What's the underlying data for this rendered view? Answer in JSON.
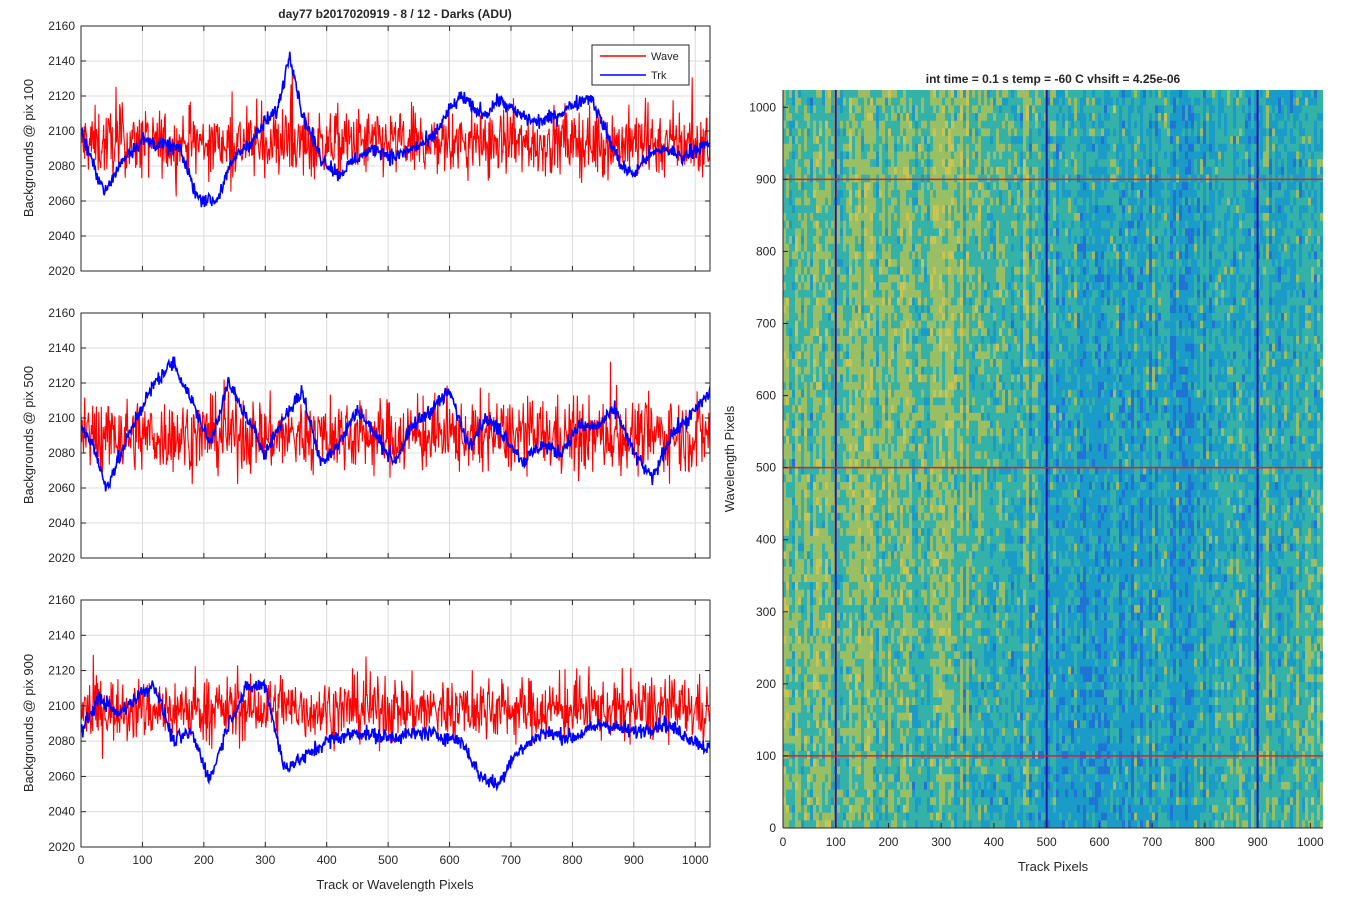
{
  "figure_title": "day77 b2017020919 - 8 / 12 - Darks (ADU)",
  "chart_data": [
    {
      "type": "line",
      "ylabel": "Backgrounds @ pix 100",
      "xlim": [
        0,
        1024
      ],
      "ylim": [
        2020,
        2160
      ],
      "xticks": [
        0,
        100,
        200,
        300,
        400,
        500,
        600,
        700,
        800,
        900,
        1000
      ],
      "yticks": [
        2020,
        2040,
        2060,
        2080,
        2100,
        2120,
        2140,
        2160
      ],
      "grid": true,
      "legend": {
        "placement": "top-right",
        "entries": [
          "Wave",
          "Trk"
        ]
      },
      "series": [
        {
          "name": "Wave",
          "color": "#ff0000",
          "mean": 2093,
          "noise": 13
        },
        {
          "name": "Trk",
          "color": "#0000ff",
          "x": [
            0,
            20,
            40,
            70,
            100,
            130,
            160,
            190,
            220,
            250,
            280,
            300,
            320,
            340,
            360,
            390,
            420,
            450,
            480,
            510,
            540,
            570,
            600,
            620,
            640,
            660,
            680,
            710,
            740,
            770,
            800,
            830,
            860,
            880,
            900,
            920,
            950,
            980,
            1000,
            1024
          ],
          "y": [
            2100,
            2080,
            2065,
            2085,
            2095,
            2092,
            2090,
            2062,
            2060,
            2085,
            2095,
            2105,
            2112,
            2145,
            2110,
            2085,
            2075,
            2085,
            2090,
            2085,
            2090,
            2095,
            2112,
            2120,
            2112,
            2110,
            2118,
            2110,
            2105,
            2108,
            2115,
            2120,
            2095,
            2080,
            2075,
            2085,
            2090,
            2085,
            2090,
            2092
          ]
        }
      ]
    },
    {
      "type": "line",
      "ylabel": "Backgrounds @ pix 500",
      "xlim": [
        0,
        1024
      ],
      "ylim": [
        2020,
        2160
      ],
      "xticks": [
        0,
        100,
        200,
        300,
        400,
        500,
        600,
        700,
        800,
        900,
        1000
      ],
      "yticks": [
        2020,
        2040,
        2060,
        2080,
        2100,
        2120,
        2140,
        2160
      ],
      "grid": true,
      "series": [
        {
          "name": "Wave",
          "color": "#ff0000",
          "mean": 2090,
          "noise": 14
        },
        {
          "name": "Trk",
          "color": "#0000ff",
          "x": [
            0,
            20,
            40,
            60,
            90,
            120,
            150,
            180,
            210,
            240,
            270,
            300,
            330,
            360,
            390,
            420,
            450,
            480,
            510,
            540,
            570,
            600,
            630,
            660,
            690,
            720,
            750,
            780,
            810,
            840,
            870,
            900,
            930,
            960,
            990,
            1024
          ],
          "y": [
            2095,
            2085,
            2060,
            2075,
            2100,
            2120,
            2132,
            2110,
            2085,
            2120,
            2100,
            2080,
            2100,
            2115,
            2075,
            2085,
            2105,
            2090,
            2075,
            2095,
            2105,
            2115,
            2085,
            2100,
            2090,
            2075,
            2085,
            2080,
            2095,
            2095,
            2105,
            2080,
            2065,
            2090,
            2100,
            2115
          ]
        }
      ]
    },
    {
      "type": "line",
      "ylabel": "Backgrounds @ pix 900",
      "xlabel": "Track or Wavelength Pixels",
      "xlim": [
        0,
        1024
      ],
      "ylim": [
        2020,
        2160
      ],
      "xticks": [
        0,
        100,
        200,
        300,
        400,
        500,
        600,
        700,
        800,
        900,
        1000
      ],
      "yticks": [
        2020,
        2040,
        2060,
        2080,
        2100,
        2120,
        2140,
        2160
      ],
      "grid": true,
      "series": [
        {
          "name": "Wave",
          "color": "#ff0000",
          "mean": 2098,
          "noise": 12
        },
        {
          "name": "Trk",
          "color": "#0000ff",
          "x": [
            0,
            30,
            60,
            100,
            120,
            150,
            180,
            210,
            240,
            270,
            300,
            330,
            360,
            400,
            450,
            500,
            560,
            620,
            650,
            680,
            700,
            750,
            800,
            850,
            900,
            950,
            1000,
            1024
          ],
          "y": [
            2085,
            2105,
            2095,
            2108,
            2112,
            2080,
            2085,
            2058,
            2090,
            2110,
            2112,
            2065,
            2070,
            2080,
            2085,
            2082,
            2085,
            2080,
            2060,
            2055,
            2070,
            2085,
            2082,
            2090,
            2085,
            2090,
            2080,
            2075
          ]
        }
      ]
    },
    {
      "type": "heatmap",
      "title": "int time = 0.1 s   temp = -60 C   vhsift = 4.25e-06",
      "xlabel": "Track Pixels",
      "ylabel": "Wavelength Pixels",
      "xlim": [
        0,
        1024
      ],
      "ylim": [
        0,
        1024
      ],
      "xticks": [
        0,
        100,
        200,
        300,
        400,
        500,
        600,
        700,
        800,
        900,
        1000
      ],
      "yticks": [
        0,
        100,
        200,
        300,
        400,
        500,
        600,
        700,
        800,
        900,
        1000
      ],
      "colormap": [
        "#1e6fd6",
        "#1a9bc9",
        "#35b3a6",
        "#a4c15c",
        "#d8c84a"
      ],
      "vertical_lines": {
        "x": [
          100,
          500,
          900
        ],
        "color": "#1a1aaa"
      },
      "horizontal_lines": {
        "y": [
          100,
          500,
          900
        ],
        "color": "#dd2222"
      }
    }
  ]
}
